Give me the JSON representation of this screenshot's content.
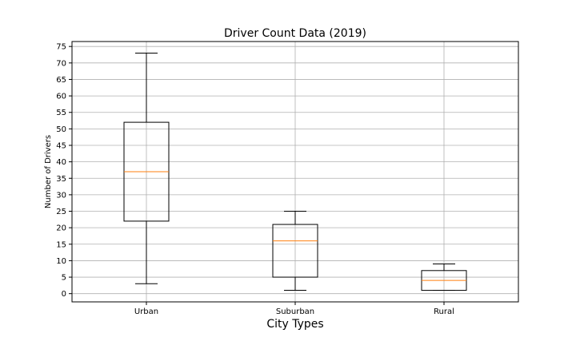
{
  "chart_data": {
    "type": "box",
    "title": "Driver Count Data (2019)",
    "xlabel": "City Types",
    "ylabel": "Number of Drivers",
    "categories": [
      "Urban",
      "Suburban",
      "Rural"
    ],
    "boxes": [
      {
        "name": "Urban",
        "whisker_low": 3,
        "q1": 22,
        "median": 37,
        "q3": 52,
        "whisker_high": 73
      },
      {
        "name": "Suburban",
        "whisker_low": 1,
        "q1": 5,
        "median": 16,
        "q3": 21,
        "whisker_high": 25
      },
      {
        "name": "Rural",
        "whisker_low": 1,
        "q1": 1,
        "median": 4,
        "q3": 7,
        "whisker_high": 9
      }
    ],
    "ylim": [
      -2.5,
      76.5
    ],
    "yticks": [
      0,
      5,
      10,
      15,
      20,
      25,
      30,
      35,
      40,
      45,
      50,
      55,
      60,
      65,
      70,
      75
    ],
    "grid": true,
    "colors": {
      "box": "#000000",
      "median": "#ff7f0e",
      "grid": "#b0b0b0"
    }
  }
}
